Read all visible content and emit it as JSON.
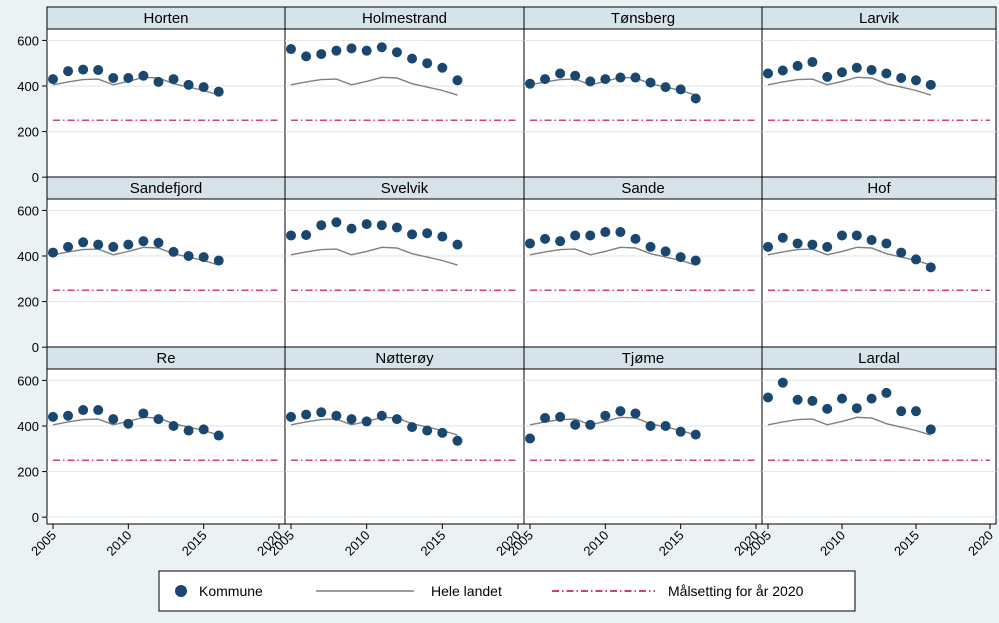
{
  "colors": {
    "background": "#eaf2f3",
    "panel": "#ffffff",
    "strip": "#d7e3ea",
    "grid": "#dde6ea",
    "kommune": "#1a476f",
    "hele_landet": "#7f7f7f",
    "malsetting": "#c10534"
  },
  "chart_data": {
    "type": "scatter",
    "grid": true,
    "legend_position": "bottom",
    "x_ticks": [
      2005,
      2010,
      2015,
      2020
    ],
    "y_ticks": [
      0,
      200,
      400,
      600
    ],
    "xlim": [
      2005,
      2020
    ],
    "ylim": [
      -30,
      650
    ],
    "x_years": [
      2005,
      2006,
      2007,
      2008,
      2009,
      2010,
      2011,
      2012,
      2013,
      2014,
      2015,
      2016
    ],
    "legend": {
      "kommune": "Kommune",
      "hele_landet": "Hele landet",
      "malsetting": "Målsetting for år 2020"
    },
    "hele_landet": [
      405,
      418,
      428,
      430,
      405,
      420,
      438,
      435,
      410,
      395,
      380,
      360
    ],
    "malsetting": 250,
    "panels": [
      {
        "name": "Horten",
        "values": [
          430,
          465,
          472,
          470,
          435,
          435,
          445,
          418,
          430,
          405,
          395,
          375
        ]
      },
      {
        "name": "Holmestrand",
        "values": [
          562,
          530,
          540,
          555,
          565,
          555,
          570,
          548,
          520,
          500,
          480,
          425
        ]
      },
      {
        "name": "Tønsberg",
        "values": [
          410,
          430,
          455,
          445,
          420,
          430,
          437,
          437,
          415,
          395,
          385,
          345
        ]
      },
      {
        "name": "Larvik",
        "values": [
          455,
          468,
          488,
          505,
          440,
          460,
          480,
          470,
          455,
          435,
          425,
          405
        ]
      },
      {
        "name": "Sandefjord",
        "values": [
          415,
          440,
          460,
          450,
          440,
          450,
          465,
          458,
          418,
          400,
          395,
          380
        ]
      },
      {
        "name": "Svelvik",
        "values": [
          490,
          492,
          535,
          548,
          520,
          540,
          535,
          525,
          495,
          500,
          485,
          450
        ]
      },
      {
        "name": "Sande",
        "values": [
          455,
          475,
          465,
          490,
          490,
          505,
          505,
          475,
          440,
          420,
          395,
          380
        ]
      },
      {
        "name": "Hof",
        "values": [
          440,
          480,
          455,
          450,
          440,
          490,
          490,
          470,
          455,
          415,
          385,
          350
        ]
      },
      {
        "name": "Re",
        "values": [
          440,
          445,
          470,
          470,
          430,
          410,
          455,
          430,
          400,
          380,
          385,
          358
        ]
      },
      {
        "name": "Nøtterøy",
        "values": [
          440,
          450,
          460,
          445,
          430,
          420,
          445,
          430,
          395,
          380,
          370,
          335
        ]
      },
      {
        "name": "Tjøme",
        "values": [
          345,
          435,
          440,
          405,
          405,
          445,
          465,
          455,
          400,
          400,
          375,
          362
        ]
      },
      {
        "name": "Lardal",
        "values": [
          525,
          590,
          515,
          510,
          475,
          520,
          478,
          520,
          545,
          465,
          465,
          385
        ]
      }
    ]
  }
}
